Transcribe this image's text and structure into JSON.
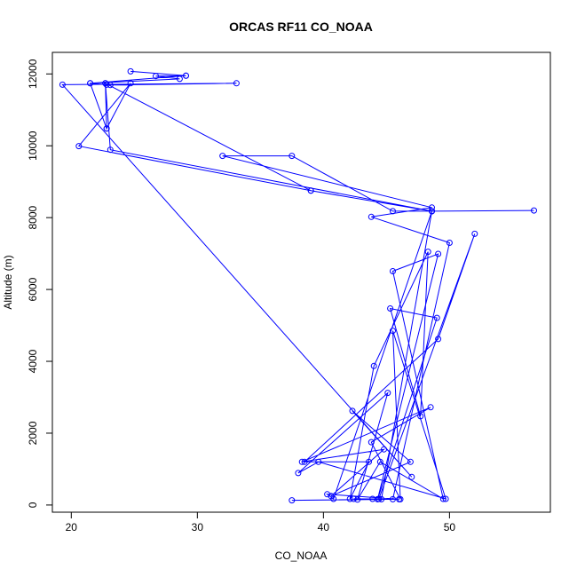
{
  "chart_data": {
    "type": "line",
    "title": "ORCAS RF11 CO_NOAA",
    "xlabel": "CO_NOAA",
    "ylabel": "Altitude (m)",
    "xlim": [
      18.5,
      58
    ],
    "ylim": [
      -200,
      12600
    ],
    "xticks": [
      20,
      30,
      40,
      50
    ],
    "yticks": [
      0,
      2000,
      4000,
      6000,
      8000,
      10000,
      12000
    ],
    "markers": "open-circle",
    "grid": false,
    "legend": "none",
    "color": "#0000ff",
    "series": [
      {
        "x": [
          24.7,
          29.1,
          26.7,
          28.6,
          21.5,
          22.8,
          23.1,
          33.1,
          19.3,
          47.0,
          42.3,
          46.9,
          40.6,
          44.8,
          38.3,
          48.5,
          43.8,
          46.1,
          45.5,
          49.7,
          39.6,
          38.0,
          45.1,
          42.7,
          44.5,
          49.5,
          45.5,
          49.1,
          44.3,
          49.0,
          45.3,
          47.7,
          48.3,
          44.0,
          42.1,
          43.6,
          38.5,
          49.1,
          52.0,
          44.4,
          42.4,
          43.9,
          44.6,
          48.6,
          40.8,
          40.3,
          46.0,
          37.5,
          45.5,
          50.0,
          43.8,
          48.6,
          32.0,
          37.5,
          45.5,
          48.6,
          56.7,
          48.6,
          39.0,
          20.6,
          24.7,
          22.8,
          22.7,
          23.1,
          48.6,
          39.0,
          22.7,
          22.8,
          21.5,
          29.1
        ],
        "y": [
          12070,
          11950,
          11940,
          11860,
          11740,
          11700,
          11690,
          11740,
          11700,
          780,
          2620,
          1200,
          250,
          1550,
          1200,
          2720,
          1750,
          160,
          4850,
          170,
          1200,
          890,
          3120,
          150,
          1200,
          170,
          6510,
          6990,
          160,
          5210,
          5470,
          2470,
          7050,
          3870,
          170,
          1200,
          1200,
          4620,
          7550,
          170,
          170,
          170,
          160,
          8180,
          170,
          300,
          160,
          130,
          160,
          7300,
          8020,
          8280,
          9720,
          9720,
          8180,
          8180,
          8200,
          8180,
          8750,
          9990,
          11740,
          10480,
          11740,
          9890,
          8180,
          8750,
          11740,
          10480,
          11740,
          11950
        ]
      }
    ]
  }
}
